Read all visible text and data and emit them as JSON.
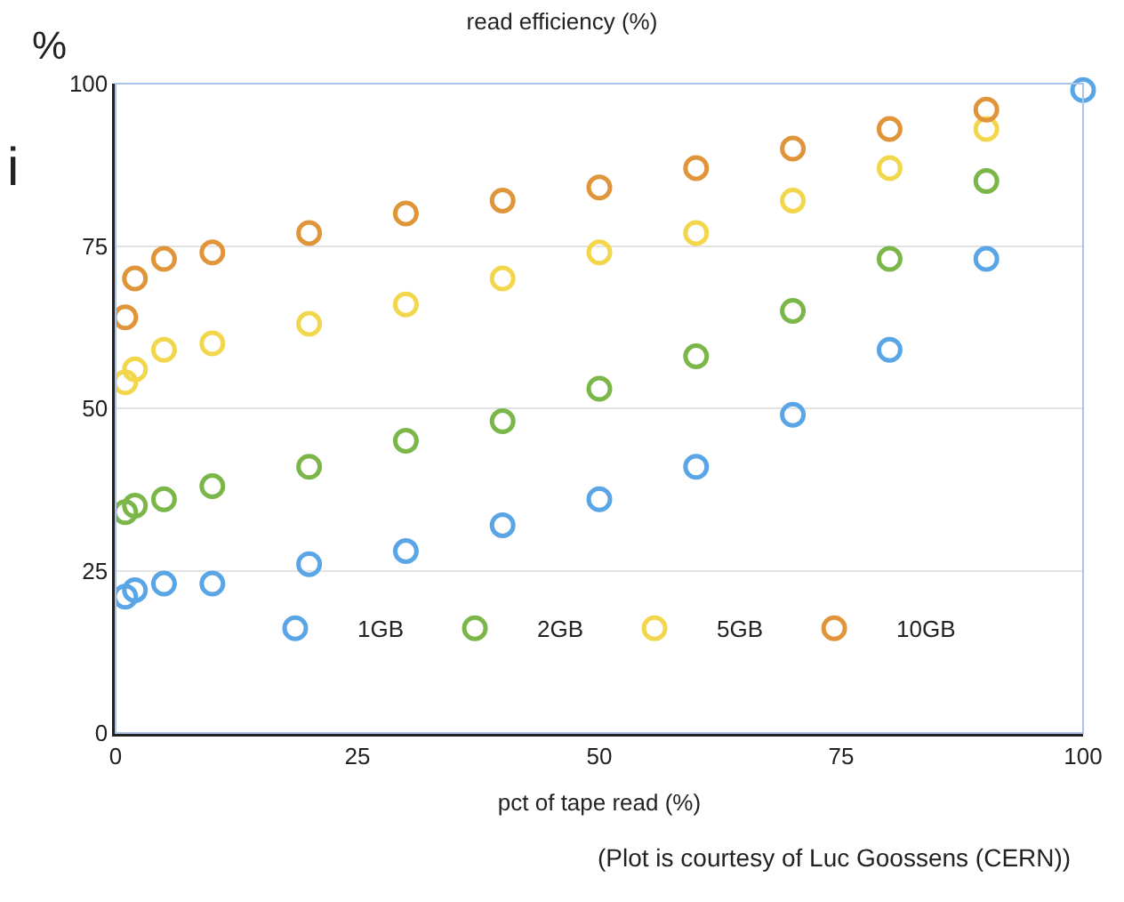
{
  "chart_data": {
    "type": "scatter",
    "title": "read efficiency (%)",
    "xlabel": "pct of tape read (%)",
    "ylabel": "%",
    "annotations": [
      "(Plot is courtesy of Luc Goossens (CERN))",
      "i"
    ],
    "x": [
      1,
      2,
      5,
      10,
      20,
      30,
      40,
      50,
      60,
      70,
      80,
      90,
      100
    ],
    "series": [
      {
        "name": "1GB",
        "color": "#5aa5e6",
        "values": [
          21,
          22,
          23,
          23,
          26,
          28,
          32,
          36,
          41,
          49,
          59,
          73,
          99
        ]
      },
      {
        "name": "2GB",
        "color": "#7ab648",
        "values": [
          34,
          35,
          36,
          38,
          41,
          45,
          48,
          53,
          58,
          65,
          73,
          85,
          null
        ]
      },
      {
        "name": "5GB",
        "color": "#f2d64b",
        "values": [
          54,
          56,
          59,
          60,
          63,
          66,
          70,
          74,
          77,
          82,
          87,
          93,
          null
        ]
      },
      {
        "name": "10GB",
        "color": "#e0953a",
        "values": [
          64,
          70,
          73,
          74,
          77,
          80,
          82,
          84,
          87,
          90,
          93,
          96,
          null
        ]
      }
    ],
    "xlim": [
      0,
      100
    ],
    "xticks": [
      0,
      25,
      50,
      75,
      100
    ],
    "ylim": [
      0,
      100
    ],
    "yticks": [
      0,
      25,
      50,
      75,
      100
    ],
    "grid": "y",
    "legend": "bottom",
    "marker": "circle"
  }
}
